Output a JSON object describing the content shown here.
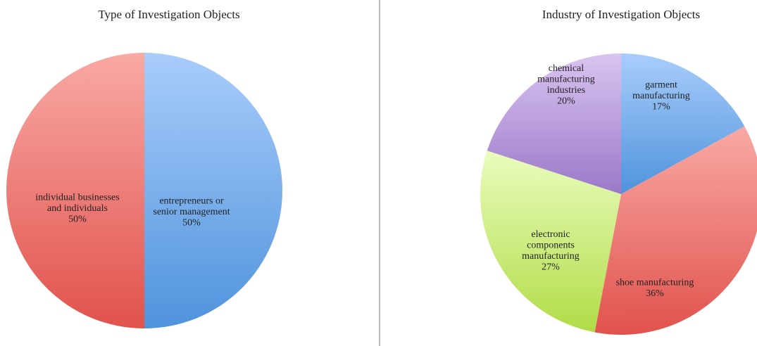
{
  "chart_data": [
    {
      "type": "pie",
      "title": "Type of Investigation Objects",
      "slices": [
        {
          "label": [
            "entrepreneurs or",
            "senior management"
          ],
          "percent_label": "50%",
          "value": 50,
          "color": "blue"
        },
        {
          "label": [
            "individual businesses",
            "and individuals"
          ],
          "percent_label": "50%",
          "value": 50,
          "color": "red"
        }
      ]
    },
    {
      "type": "pie",
      "title": "Industry of Investigation Objects",
      "slices": [
        {
          "label": [
            "garment",
            "manufacturing"
          ],
          "percent_label": "17%",
          "value": 17,
          "color": "blue"
        },
        {
          "label": [
            "shoe manufacturing"
          ],
          "percent_label": "36%",
          "value": 36,
          "color": "red"
        },
        {
          "label": [
            "electronic",
            "components",
            "manufacturing"
          ],
          "percent_label": "27%",
          "value": 27,
          "color": "green"
        },
        {
          "label": [
            "chemical",
            "manufacturing",
            "industries"
          ],
          "percent_label": "20%",
          "value": 20,
          "color": "purple"
        }
      ]
    }
  ]
}
